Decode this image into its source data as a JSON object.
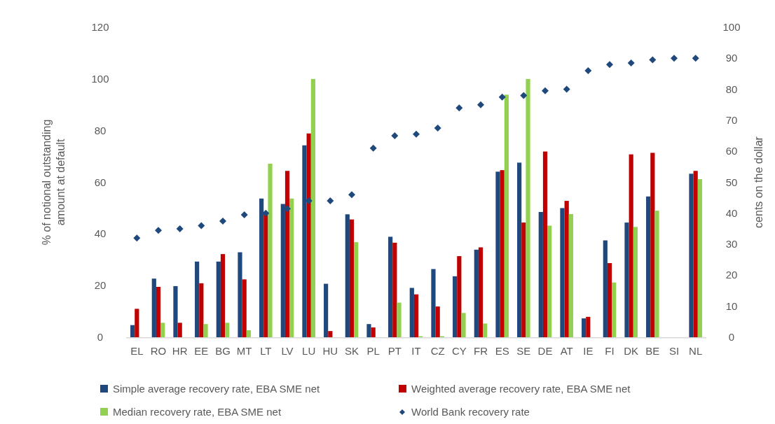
{
  "chart_data": {
    "type": "bar",
    "ylabel": "% of notional outstanding amount at default",
    "y2label": "cents on the dollar",
    "categories": [
      "EL",
      "RO",
      "HR",
      "EE",
      "BG",
      "MT",
      "LT",
      "LV",
      "LU",
      "HU",
      "SK",
      "PL",
      "PT",
      "IT",
      "CZ",
      "CY",
      "FR",
      "ES",
      "SE",
      "DE",
      "AT",
      "IE",
      "FI",
      "DK",
      "BE",
      "SI",
      "NL"
    ],
    "series": [
      {
        "name": "Simple average recovery rate, EBA SME net",
        "color": "#1f497d",
        "values": [
          4.7,
          22.7,
          19.8,
          29.3,
          29.3,
          32.9,
          53.7,
          51.6,
          74.3,
          20.7,
          47.6,
          5.1,
          38.9,
          19.1,
          26.4,
          23.6,
          33.9,
          64.1,
          67.6,
          48.5,
          50.0,
          7.3,
          37.5,
          44.4,
          54.5,
          null,
          63.3
        ]
      },
      {
        "name": "Weighted average recovery rate, EBA SME net",
        "color": "#c00000",
        "values": [
          11.0,
          19.5,
          5.6,
          20.9,
          32.2,
          22.4,
          48.2,
          64.4,
          78.9,
          2.4,
          45.6,
          3.8,
          36.6,
          16.6,
          11.9,
          31.4,
          34.8,
          64.7,
          44.4,
          71.9,
          52.8,
          7.9,
          28.7,
          70.8,
          71.4,
          null,
          64.4
        ]
      },
      {
        "name": "Median recovery rate, EBA SME net",
        "color": "#92d050",
        "values": [
          null,
          5.6,
          null,
          5.1,
          5.6,
          2.7,
          67.2,
          53.7,
          100,
          null,
          36.8,
          null,
          13.4,
          0.4,
          0.4,
          9.4,
          5.3,
          93.9,
          100,
          43.2,
          47.7,
          null,
          21.2,
          42.7,
          49.0,
          null,
          61.2
        ]
      },
      {
        "name": "World Bank recovery rate",
        "type": "scatter",
        "axis": "y2",
        "marker": "diamond",
        "color": "#1f497d",
        "values": [
          32,
          34.5,
          35,
          36,
          37.5,
          39.5,
          40,
          41.5,
          44,
          44,
          46,
          61,
          65,
          65.5,
          67.5,
          74,
          75,
          77.5,
          78,
          79.5,
          80,
          86,
          88,
          88.5,
          89.5,
          90,
          90
        ]
      }
    ],
    "ylim": [
      0,
      120
    ],
    "yticks": [
      0,
      20,
      40,
      60,
      80,
      100,
      120
    ],
    "y2lim": [
      0,
      100
    ],
    "y2ticks": [
      0,
      10,
      20,
      30,
      40,
      50,
      60,
      70,
      80,
      90,
      100
    ],
    "grid": false,
    "legend": "bottom"
  }
}
